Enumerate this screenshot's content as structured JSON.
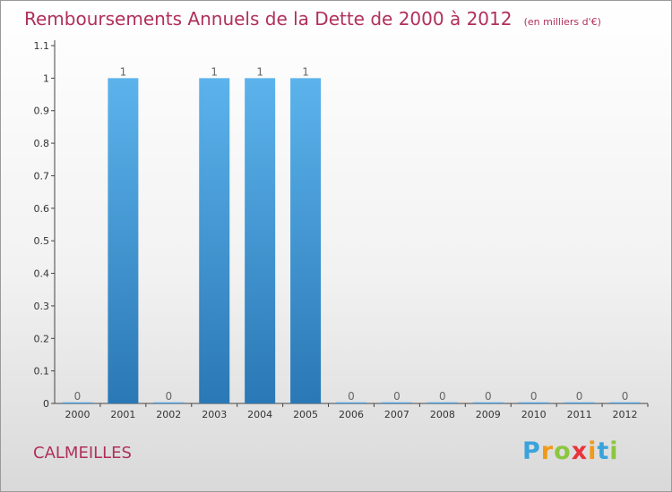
{
  "chart_data": {
    "type": "bar",
    "title": "Remboursements Annuels de la Dette de 2000 à 2012",
    "unit": "(en milliers d'€)",
    "categories": [
      "2000",
      "2001",
      "2002",
      "2003",
      "2004",
      "2005",
      "2006",
      "2007",
      "2008",
      "2009",
      "2010",
      "2011",
      "2012"
    ],
    "values": [
      0,
      1,
      0,
      1,
      1,
      1,
      0,
      0,
      0,
      0,
      0,
      0,
      0
    ],
    "value_labels": [
      "0",
      "1",
      "0",
      "1",
      "1",
      "1",
      "0",
      "0",
      "0",
      "0",
      "0",
      "0",
      "0"
    ],
    "yticks": [
      0,
      0.1,
      0.2,
      0.3,
      0.4,
      0.5,
      0.6,
      0.7,
      0.8,
      0.9,
      1,
      1.1
    ],
    "ytick_labels": [
      "0",
      "0.1",
      "0.2",
      "0.3",
      "0.4",
      "0.5",
      "0.6",
      "0.7",
      "0.8",
      "0.9",
      "1",
      "1.1"
    ],
    "ylim": [
      0,
      1.1
    ],
    "grid": false,
    "bar_color": "#4a9fe0"
  },
  "commune": "CALMEILLES",
  "logo": {
    "letters": [
      "P",
      "r",
      "o",
      "x",
      "i",
      "t",
      "i"
    ],
    "colors": [
      "#3aa3dc",
      "#f09a1a",
      "#8cc63f",
      "#e8343b",
      "#f09a1a",
      "#3aa3dc",
      "#8cc63f"
    ]
  }
}
